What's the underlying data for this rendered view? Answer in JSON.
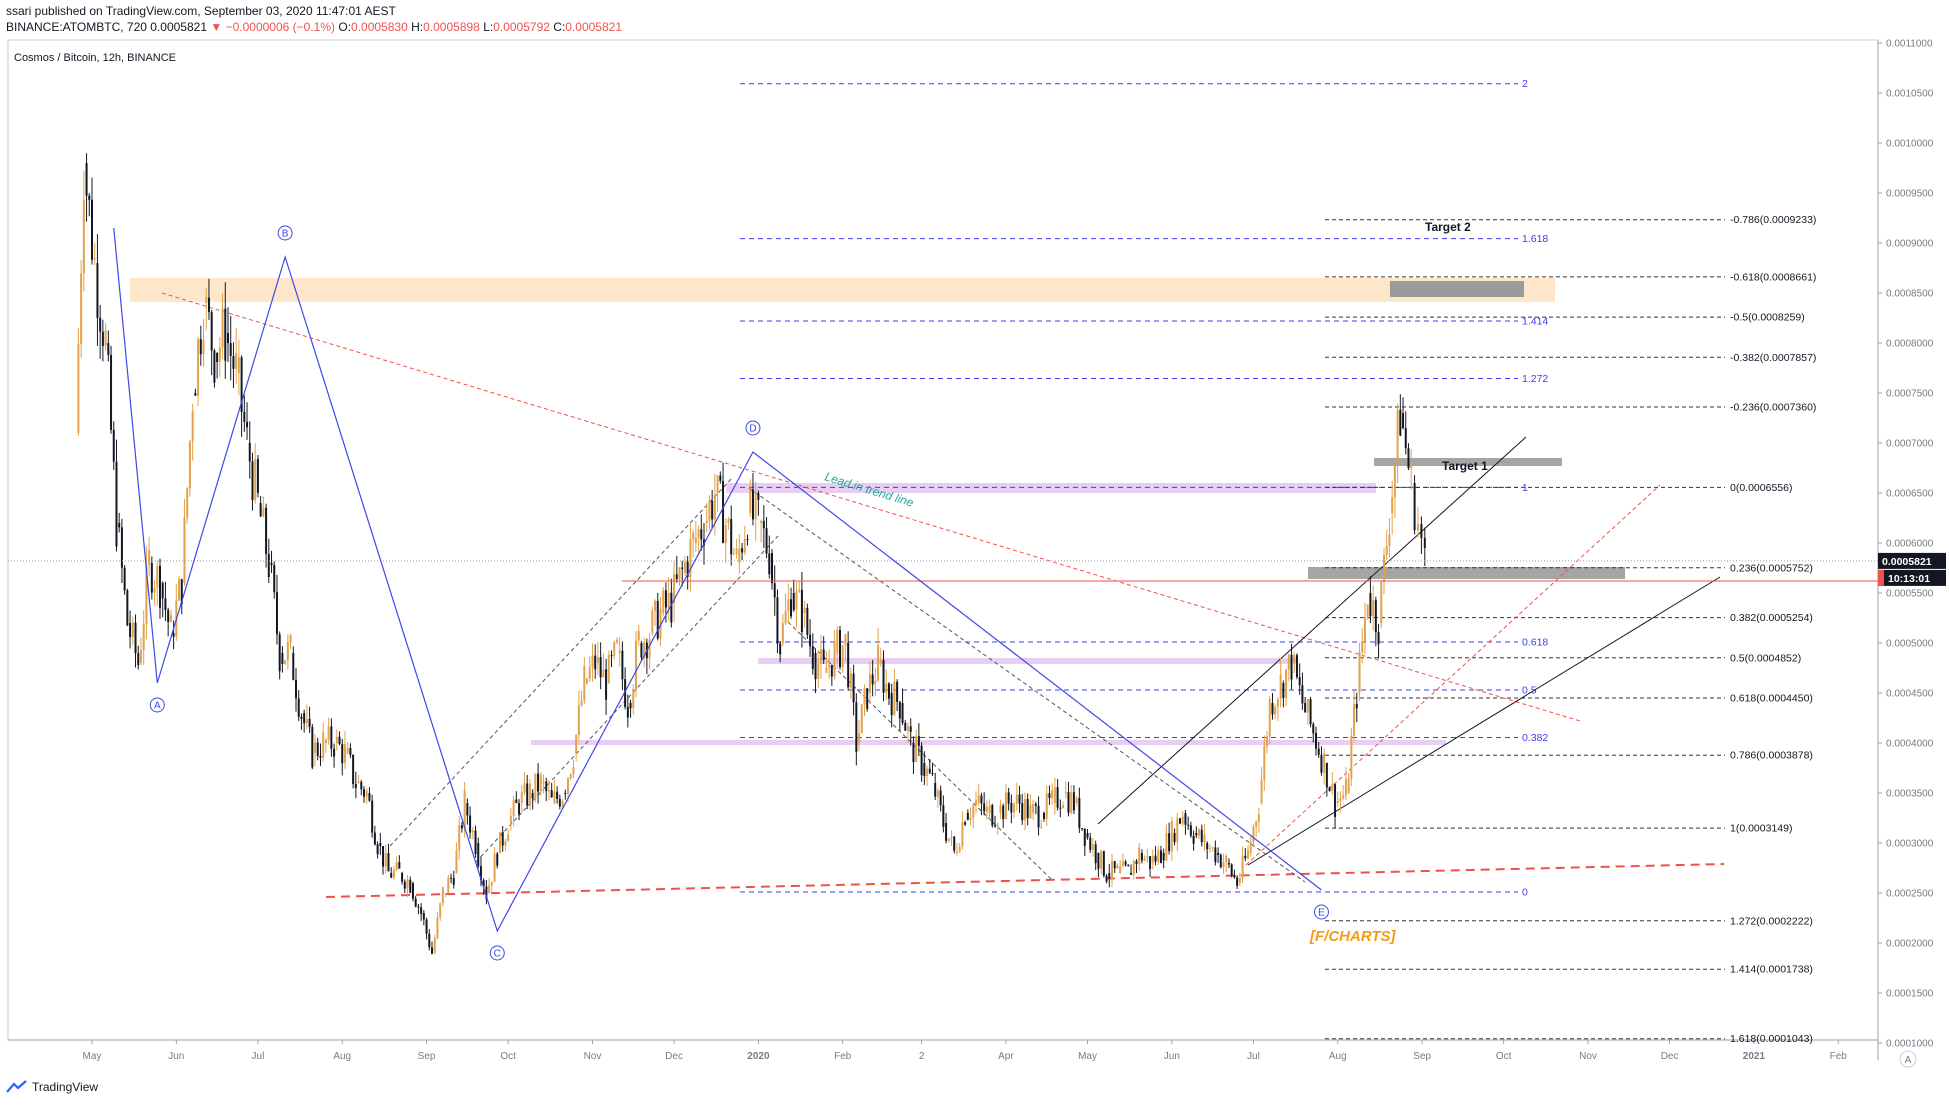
{
  "header": {
    "published": "ssari published on TradingView.com, September 03, 2020 11:47:01 AEST",
    "symbol_line": "BINANCE:ATOMBTC, 720",
    "last": "0.0005821",
    "change": "−0.0000006 (−0.1%)",
    "o_label": "O:",
    "o": "0.0005830",
    "h_label": "H:",
    "h": "0.0005898",
    "l_label": "L:",
    "l": "0.0005792",
    "c_label": "C:",
    "c": "0.0005821"
  },
  "chart_title": "Cosmos / Bitcoin, 12h, BINANCE",
  "footer": {
    "brand": "TradingView"
  },
  "colors": {
    "up": "#e2a24a",
    "down": "#131722",
    "fib_blue": "#3d3df0",
    "fib_black": "#333333",
    "trend_red": "#f0504a",
    "wave_blue": "#3d48e8",
    "orange_zone": "#fde2bf",
    "violet_zone": "#e3c6f0",
    "gray_zone": "#9b9b9b"
  },
  "chart_data": {
    "type": "candlestick",
    "title": "Cosmos / Bitcoin, 12h, BINANCE",
    "ylim": [
      0.0001,
      0.0011
    ],
    "y_ticks": [
      "0.0011000",
      "0.0010500",
      "0.0010000",
      "0.0009500",
      "0.0009000",
      "0.0008500",
      "0.0008000",
      "0.0007500",
      "0.0007000",
      "0.0006500",
      "0.0006000",
      "0.0005500",
      "0.0005000",
      "0.0004500",
      "0.0004000",
      "0.0003500",
      "0.0003000",
      "0.0002500",
      "0.0002000",
      "0.0001500",
      "0.0001000"
    ],
    "x_ticks": [
      "May",
      "Jun",
      "Jul",
      "Aug",
      "Sep",
      "Oct",
      "Nov",
      "Dec",
      "2020",
      "Feb",
      "2",
      "Apr",
      "May",
      "Jun",
      "Jul",
      "Aug",
      "Sep",
      "Oct",
      "Nov",
      "Dec",
      "2021",
      "Feb"
    ],
    "close_series": [
      [
        "2019-04-25",
        0.00071
      ],
      [
        "2019-04-28",
        0.00098
      ],
      [
        "2019-05-02",
        0.00088
      ],
      [
        "2019-05-06",
        0.0008
      ],
      [
        "2019-05-10",
        0.00062
      ],
      [
        "2019-05-14",
        0.00052
      ],
      [
        "2019-05-18",
        0.00048
      ],
      [
        "2019-05-22",
        0.00058
      ],
      [
        "2019-05-26",
        0.00056
      ],
      [
        "2019-05-30",
        0.00051
      ],
      [
        "2019-06-03",
        0.00056
      ],
      [
        "2019-06-07",
        0.00075
      ],
      [
        "2019-06-11",
        0.00084
      ],
      [
        "2019-06-15",
        0.00079
      ],
      [
        "2019-06-19",
        0.00081
      ],
      [
        "2019-06-23",
        0.00077
      ],
      [
        "2019-06-27",
        0.0007
      ],
      [
        "2019-07-01",
        0.00064
      ],
      [
        "2019-07-05",
        0.00058
      ],
      [
        "2019-07-09",
        0.00049
      ],
      [
        "2019-07-13",
        0.00049
      ],
      [
        "2019-07-17",
        0.00043
      ],
      [
        "2019-07-21",
        0.00039
      ],
      [
        "2019-07-25",
        0.0004
      ],
      [
        "2019-07-29",
        0.0004
      ],
      [
        "2019-08-02",
        0.00039
      ],
      [
        "2019-08-06",
        0.00036
      ],
      [
        "2019-08-10",
        0.00035
      ],
      [
        "2019-08-14",
        0.0003
      ],
      [
        "2019-08-18",
        0.00027
      ],
      [
        "2019-08-22",
        0.00027
      ],
      [
        "2019-08-26",
        0.00026
      ],
      [
        "2019-08-30",
        0.00023
      ],
      [
        "2019-09-03",
        0.00019
      ],
      [
        "2019-09-07",
        0.00025
      ],
      [
        "2019-09-11",
        0.00027
      ],
      [
        "2019-09-15",
        0.00034
      ],
      [
        "2019-09-19",
        0.0003
      ],
      [
        "2019-09-23",
        0.00025
      ],
      [
        "2019-09-27",
        0.00029
      ],
      [
        "2019-10-01",
        0.00032
      ],
      [
        "2019-10-05",
        0.00034
      ],
      [
        "2019-10-09",
        0.00035
      ],
      [
        "2019-10-13",
        0.00036
      ],
      [
        "2019-10-17",
        0.00034
      ],
      [
        "2019-10-21",
        0.00035
      ],
      [
        "2019-10-25",
        0.00039
      ],
      [
        "2019-10-29",
        0.00046
      ],
      [
        "2019-11-02",
        0.00048
      ],
      [
        "2019-11-06",
        0.00046
      ],
      [
        "2019-11-10",
        0.00049
      ],
      [
        "2019-11-14",
        0.00044
      ],
      [
        "2019-11-18",
        0.0005
      ],
      [
        "2019-11-22",
        0.00051
      ],
      [
        "2019-11-26",
        0.00053
      ],
      [
        "2019-11-30",
        0.00054
      ],
      [
        "2019-12-04",
        0.00057
      ],
      [
        "2019-12-08",
        0.0006
      ],
      [
        "2019-12-12",
        0.00062
      ],
      [
        "2019-12-16",
        0.00065
      ],
      [
        "2019-12-20",
        0.00062
      ],
      [
        "2019-12-24",
        0.00058
      ],
      [
        "2019-12-28",
        0.00063
      ],
      [
        "2020-01-01",
        0.00062
      ],
      [
        "2020-01-05",
        0.00059
      ],
      [
        "2020-01-09",
        0.0005
      ],
      [
        "2020-01-13",
        0.00055
      ],
      [
        "2020-01-17",
        0.00053
      ],
      [
        "2020-01-21",
        0.00049
      ],
      [
        "2020-01-25",
        0.00047
      ],
      [
        "2020-01-29",
        0.00049
      ],
      [
        "2020-02-02",
        0.0005
      ],
      [
        "2020-02-06",
        0.0004
      ],
      [
        "2020-02-10",
        0.00045
      ],
      [
        "2020-02-14",
        0.00048
      ],
      [
        "2020-02-18",
        0.00045
      ],
      [
        "2020-02-22",
        0.00044
      ],
      [
        "2020-02-26",
        0.0004
      ],
      [
        "2020-03-01",
        0.00038
      ],
      [
        "2020-03-05",
        0.00036
      ],
      [
        "2020-03-09",
        0.00032
      ],
      [
        "2020-03-13",
        0.00029
      ],
      [
        "2020-03-17",
        0.00033
      ],
      [
        "2020-03-21",
        0.00034
      ],
      [
        "2020-03-25",
        0.00033
      ],
      [
        "2020-03-29",
        0.00033
      ],
      [
        "2020-04-02",
        0.00034
      ],
      [
        "2020-04-06",
        0.00034
      ],
      [
        "2020-04-10",
        0.00033
      ],
      [
        "2020-04-14",
        0.00033
      ],
      [
        "2020-04-18",
        0.00034
      ],
      [
        "2020-04-22",
        0.00035
      ],
      [
        "2020-04-26",
        0.00034
      ],
      [
        "2020-04-30",
        0.00031
      ],
      [
        "2020-05-04",
        0.00029
      ],
      [
        "2020-05-08",
        0.00027
      ],
      [
        "2020-05-12",
        0.00027
      ],
      [
        "2020-05-16",
        0.00027
      ],
      [
        "2020-05-20",
        0.00029
      ],
      [
        "2020-05-24",
        0.00028
      ],
      [
        "2020-05-28",
        0.00029
      ],
      [
        "2020-06-01",
        0.00031
      ],
      [
        "2020-06-05",
        0.00033
      ],
      [
        "2020-06-09",
        0.00031
      ],
      [
        "2020-06-13",
        0.0003
      ],
      [
        "2020-06-17",
        0.00029
      ],
      [
        "2020-06-21",
        0.00028
      ],
      [
        "2020-06-25",
        0.00026
      ],
      [
        "2020-06-29",
        0.00029
      ],
      [
        "2020-07-03",
        0.00034
      ],
      [
        "2020-07-07",
        0.00044
      ],
      [
        "2020-07-11",
        0.00046
      ],
      [
        "2020-07-15",
        0.00048
      ],
      [
        "2020-07-19",
        0.00044
      ],
      [
        "2020-07-23",
        0.00041
      ],
      [
        "2020-07-27",
        0.00038
      ],
      [
        "2020-07-31",
        0.00034
      ],
      [
        "2020-08-04",
        0.00035
      ],
      [
        "2020-08-08",
        0.00045
      ],
      [
        "2020-08-12",
        0.00055
      ],
      [
        "2020-08-16",
        0.00052
      ],
      [
        "2020-08-20",
        0.00063
      ],
      [
        "2020-08-24",
        0.00073
      ],
      [
        "2020-08-28",
        0.00066
      ],
      [
        "2020-09-02",
        0.00058
      ]
    ],
    "price_line_label": "0.0005821",
    "countdown_label": "10:13:01",
    "fib_blue": [
      {
        "label": "2",
        "price": 0.0010593
      },
      {
        "label": "1.618",
        "price": 0.0009044
      },
      {
        "label": "1.414",
        "price": 0.000822
      },
      {
        "label": "1.272",
        "price": 0.0007645
      },
      {
        "label": "1",
        "price": 0.0006556
      },
      {
        "label": "0.618",
        "price": 0.000501
      },
      {
        "label": "0.5",
        "price": 0.000453
      },
      {
        "label": "0.382",
        "price": 0.0004055
      },
      {
        "label": "0",
        "price": 0.000251
      }
    ],
    "fib_black": [
      {
        "label": "-0.786(0.0009233)",
        "price": 0.0009233
      },
      {
        "label": "-0.618(0.0008661)",
        "price": 0.0008661
      },
      {
        "label": "-0.5(0.0008259)",
        "price": 0.0008259
      },
      {
        "label": "-0.382(0.0007857)",
        "price": 0.0007857
      },
      {
        "label": "-0.236(0.0007360)",
        "price": 0.000736
      },
      {
        "label": "0(0.0006556)",
        "price": 0.0006556
      },
      {
        "label": "0.236(0.0005752)",
        "price": 0.0005752
      },
      {
        "label": "0.382(0.0005254)",
        "price": 0.0005254
      },
      {
        "label": "0.5(0.0004852)",
        "price": 0.0004852
      },
      {
        "label": "0.618(0.0004450)",
        "price": 0.000445
      },
      {
        "label": "0.786(0.0003878)",
        "price": 0.0003878
      },
      {
        "label": "1(0.0003149)",
        "price": 0.0003149
      },
      {
        "label": "1.272(0.0002222)",
        "price": 0.0002222
      },
      {
        "label": "1.414(0.0001738)",
        "price": 0.0001738
      },
      {
        "label": "1.618(0.0001043)",
        "price": 0.0001043
      }
    ],
    "waves": [
      {
        "label": "A",
        "date": "2019-05-25",
        "price": 0.00046
      },
      {
        "label": "B",
        "date": "2019-07-11",
        "price": 0.000886
      },
      {
        "label": "C",
        "date": "2019-09-27",
        "price": 0.000212
      },
      {
        "label": "D",
        "date": "2019-12-30",
        "price": 0.000691
      },
      {
        "label": "E",
        "date": "2020-07-26",
        "price": 0.000253
      }
    ],
    "annotations": {
      "target1": "Target 1",
      "target2": "Target 2",
      "trend": "Lead in trend line",
      "brand": "[F/CHARTS]"
    }
  }
}
